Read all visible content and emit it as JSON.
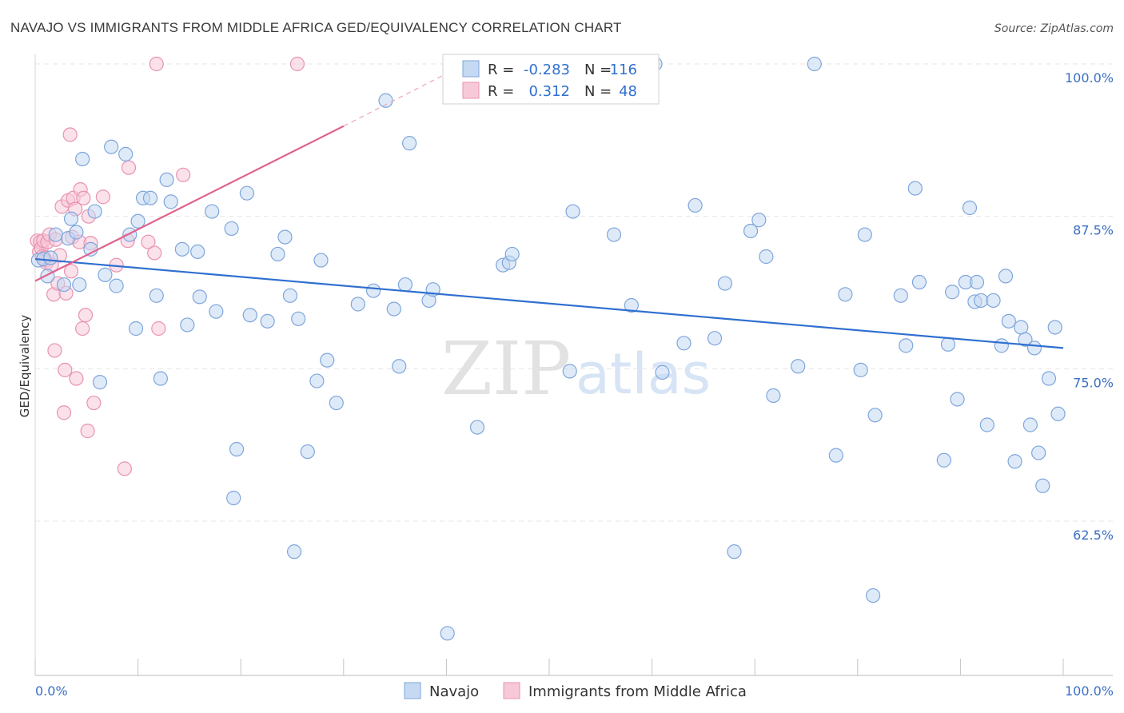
{
  "title": "NAVAJO VS IMMIGRANTS FROM MIDDLE AFRICA GED/EQUIVALENCY CORRELATION CHART",
  "source": "Source: ZipAtlas.com",
  "watermark": {
    "zip": "ZIP",
    "atlas": "atlas"
  },
  "legend": {
    "rows": [
      {
        "r_label": "R =",
        "r_value": "-0.283",
        "n_label": "N =",
        "n_value": "116"
      },
      {
        "r_label": "R =",
        "r_value": "0.312",
        "n_label": "N =",
        "n_value": "48"
      }
    ]
  },
  "bottom_legend": [
    "Navajo",
    "Immigrants from Middle Africa"
  ],
  "colors": {
    "navajo_fill": "#c5d9f2",
    "navajo_stroke": "#7ea6dc",
    "navajo_line": "#2f6fd0",
    "imm_fill": "#f7c9d8",
    "imm_stroke": "#e893b0",
    "imm_line": "#e0628f",
    "grid": "#e6e6e6",
    "tick_text": "#3a6fc4"
  },
  "chart_data": {
    "type": "scatter",
    "title": "NAVAJO VS IMMIGRANTS FROM MIDDLE AFRICA GED/EQUIVALENCY CORRELATION CHART",
    "xlabel": "",
    "ylabel": "GED/Equivalency",
    "xlim": [
      0,
      100
    ],
    "ylim": [
      51.5,
      102
    ],
    "x_tick_labels": [
      "0.0%",
      "100.0%"
    ],
    "y_ticks": [
      100.0,
      87.5,
      75.0,
      62.5
    ],
    "y_tick_labels": [
      "100.0%",
      "87.5%",
      "75.0%",
      "62.5%"
    ],
    "grid": true,
    "legend_position": "top-center",
    "series": [
      {
        "name": "Navajo",
        "r": -0.283,
        "n": 116,
        "trend": {
          "x": [
            0,
            100
          ],
          "y": [
            84.0,
            76.7
          ]
        },
        "points": [
          [
            0.3,
            83.9
          ],
          [
            0.8,
            84.0
          ],
          [
            1.2,
            82.6
          ],
          [
            1.5,
            84.1
          ],
          [
            2.0,
            86.0
          ],
          [
            2.8,
            81.9
          ],
          [
            3.2,
            85.7
          ],
          [
            3.5,
            87.3
          ],
          [
            4.0,
            86.2
          ],
          [
            4.3,
            81.9
          ],
          [
            4.6,
            92.2
          ],
          [
            5.4,
            84.8
          ],
          [
            5.8,
            87.9
          ],
          [
            6.3,
            73.9
          ],
          [
            6.8,
            82.7
          ],
          [
            7.4,
            93.2
          ],
          [
            7.9,
            81.8
          ],
          [
            8.8,
            92.6
          ],
          [
            9.2,
            86.0
          ],
          [
            9.8,
            78.3
          ],
          [
            10.0,
            87.1
          ],
          [
            10.5,
            89.0
          ],
          [
            11.2,
            89.0
          ],
          [
            11.8,
            81.0
          ],
          [
            12.2,
            74.2
          ],
          [
            12.8,
            90.5
          ],
          [
            13.2,
            88.7
          ],
          [
            14.3,
            84.8
          ],
          [
            14.8,
            78.6
          ],
          [
            15.8,
            84.6
          ],
          [
            16.0,
            80.9
          ],
          [
            17.2,
            87.9
          ],
          [
            17.6,
            79.7
          ],
          [
            19.1,
            86.5
          ],
          [
            19.3,
            64.4
          ],
          [
            19.6,
            68.4
          ],
          [
            20.6,
            89.4
          ],
          [
            20.9,
            79.4
          ],
          [
            22.6,
            78.9
          ],
          [
            23.6,
            84.4
          ],
          [
            24.3,
            85.8
          ],
          [
            24.8,
            81.0
          ],
          [
            25.2,
            60.0
          ],
          [
            25.6,
            79.1
          ],
          [
            26.5,
            68.2
          ],
          [
            27.4,
            74.0
          ],
          [
            27.8,
            83.9
          ],
          [
            28.4,
            75.7
          ],
          [
            29.3,
            72.2
          ],
          [
            31.4,
            80.3
          ],
          [
            32.9,
            81.4
          ],
          [
            34.1,
            97.0
          ],
          [
            34.9,
            79.9
          ],
          [
            35.4,
            75.2
          ],
          [
            36.0,
            81.9
          ],
          [
            36.4,
            93.5
          ],
          [
            38.3,
            80.6
          ],
          [
            38.7,
            81.5
          ],
          [
            40.1,
            53.3
          ],
          [
            43.0,
            70.2
          ],
          [
            45.5,
            83.5
          ],
          [
            46.1,
            83.7
          ],
          [
            46.4,
            84.4
          ],
          [
            52.0,
            74.8
          ],
          [
            52.3,
            87.9
          ],
          [
            52.8,
            100.0
          ],
          [
            56.3,
            86.0
          ],
          [
            58.0,
            80.2
          ],
          [
            59.7,
            99.6
          ],
          [
            60.3,
            100.0
          ],
          [
            61.0,
            74.7
          ],
          [
            63.1,
            77.1
          ],
          [
            64.2,
            88.4
          ],
          [
            66.1,
            77.5
          ],
          [
            67.1,
            82.0
          ],
          [
            68.0,
            60.0
          ],
          [
            69.6,
            86.3
          ],
          [
            70.4,
            87.2
          ],
          [
            71.1,
            84.2
          ],
          [
            71.8,
            72.8
          ],
          [
            74.2,
            75.2
          ],
          [
            75.8,
            100.0
          ],
          [
            77.9,
            67.9
          ],
          [
            78.8,
            81.1
          ],
          [
            80.3,
            74.9
          ],
          [
            80.7,
            86.0
          ],
          [
            81.5,
            56.4
          ],
          [
            81.7,
            71.2
          ],
          [
            84.2,
            81.0
          ],
          [
            84.7,
            76.9
          ],
          [
            85.6,
            89.8
          ],
          [
            86.0,
            82.1
          ],
          [
            88.4,
            67.5
          ],
          [
            88.8,
            77.0
          ],
          [
            89.2,
            81.3
          ],
          [
            89.7,
            72.5
          ],
          [
            90.5,
            82.1
          ],
          [
            90.9,
            88.2
          ],
          [
            91.4,
            80.5
          ],
          [
            91.6,
            82.1
          ],
          [
            92.0,
            80.6
          ],
          [
            92.6,
            70.4
          ],
          [
            93.2,
            80.6
          ],
          [
            94.0,
            76.9
          ],
          [
            94.4,
            82.6
          ],
          [
            94.7,
            78.9
          ],
          [
            95.3,
            67.4
          ],
          [
            95.9,
            78.4
          ],
          [
            96.3,
            77.4
          ],
          [
            96.8,
            70.4
          ],
          [
            97.2,
            76.7
          ],
          [
            97.6,
            68.1
          ],
          [
            98.0,
            65.4
          ],
          [
            98.6,
            74.2
          ],
          [
            99.2,
            78.4
          ],
          [
            99.5,
            71.3
          ]
        ]
      },
      {
        "name": "Immigrants from Middle Africa",
        "r": 0.312,
        "n": 48,
        "trend_solid": {
          "x": [
            0,
            30
          ],
          "y": [
            82.2,
            94.9
          ]
        },
        "trend_dashed": {
          "x": [
            30,
            40
          ],
          "y": [
            94.9,
            99.2
          ]
        },
        "points": [
          [
            0.2,
            85.5
          ],
          [
            0.4,
            84.6
          ],
          [
            0.5,
            85.4
          ],
          [
            0.6,
            84.9
          ],
          [
            0.7,
            84.2
          ],
          [
            0.8,
            85.5
          ],
          [
            0.9,
            84.1
          ],
          [
            1.0,
            83.9
          ],
          [
            1.1,
            83.7
          ],
          [
            1.2,
            85.4
          ],
          [
            1.4,
            86.0
          ],
          [
            1.6,
            83.5
          ],
          [
            1.8,
            81.1
          ],
          [
            1.9,
            76.5
          ],
          [
            2.0,
            85.6
          ],
          [
            2.2,
            82.0
          ],
          [
            2.4,
            84.3
          ],
          [
            2.6,
            88.3
          ],
          [
            2.8,
            71.4
          ],
          [
            2.9,
            74.9
          ],
          [
            3.0,
            81.2
          ],
          [
            3.2,
            88.8
          ],
          [
            3.4,
            94.2
          ],
          [
            3.5,
            83.0
          ],
          [
            3.6,
            85.8
          ],
          [
            3.7,
            89.0
          ],
          [
            3.9,
            88.1
          ],
          [
            4.0,
            74.2
          ],
          [
            4.3,
            85.4
          ],
          [
            4.4,
            89.7
          ],
          [
            4.6,
            78.3
          ],
          [
            4.7,
            89.0
          ],
          [
            4.9,
            79.4
          ],
          [
            5.1,
            69.9
          ],
          [
            5.2,
            87.5
          ],
          [
            5.4,
            85.3
          ],
          [
            5.7,
            72.2
          ],
          [
            6.6,
            89.1
          ],
          [
            7.9,
            83.5
          ],
          [
            8.7,
            66.8
          ],
          [
            9.0,
            85.5
          ],
          [
            9.1,
            91.5
          ],
          [
            11.0,
            85.4
          ],
          [
            11.6,
            84.5
          ],
          [
            11.8,
            100.0
          ],
          [
            12.0,
            78.3
          ],
          [
            14.4,
            90.9
          ],
          [
            25.5,
            100.0
          ]
        ]
      }
    ]
  }
}
